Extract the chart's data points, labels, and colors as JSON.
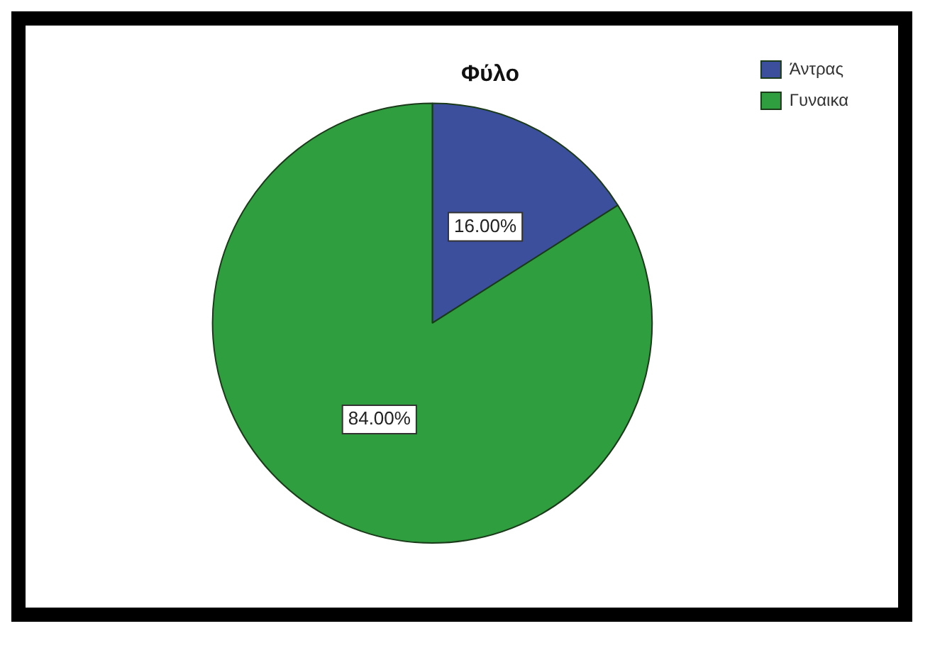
{
  "chart_data": {
    "type": "pie",
    "title": "Φύλο",
    "categories": [
      "Άντρας",
      "Γυναικα"
    ],
    "values": [
      16,
      84
    ],
    "colors": [
      "#3b4f9c",
      "#2f9e3f"
    ],
    "value_labels": [
      "16.00%",
      "84.00%"
    ],
    "legend": "top right"
  }
}
